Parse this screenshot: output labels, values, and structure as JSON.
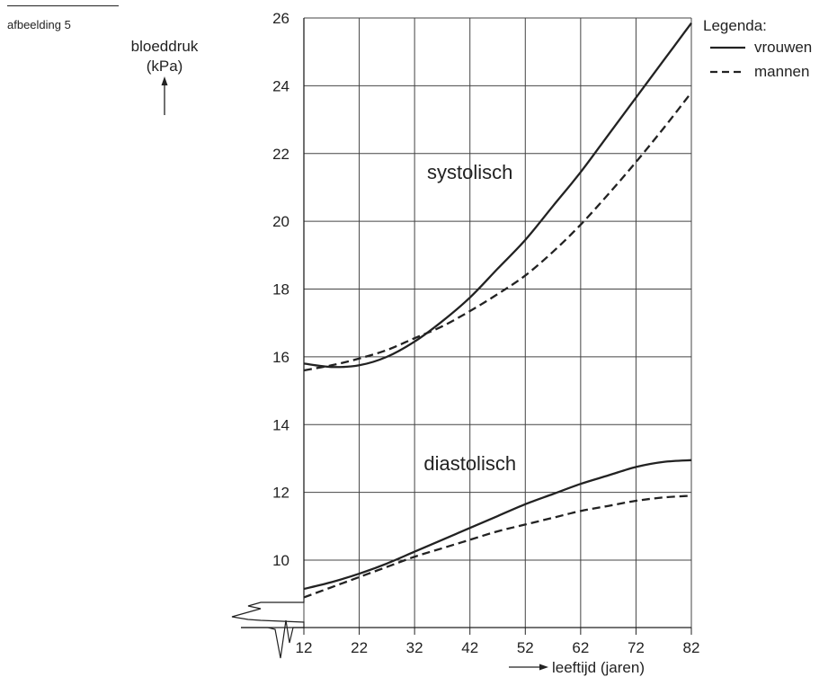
{
  "figure_label": "afbeelding 5",
  "chart_data": {
    "type": "line",
    "y_axis": {
      "label_line1": "bloeddruk",
      "label_line2": "(kPa)",
      "ylim": [
        8,
        26
      ],
      "ticks": [
        10,
        12,
        14,
        16,
        18,
        20,
        22,
        24,
        26
      ]
    },
    "x_axis": {
      "label": "leeftijd (jaren)",
      "xlim": [
        12,
        82
      ],
      "ticks": [
        12,
        22,
        32,
        42,
        52,
        62,
        72,
        82
      ]
    },
    "grid": true,
    "axis_break": true,
    "legend": {
      "title": "Legenda:",
      "placement": "top-right",
      "entries": [
        {
          "label": "vrouwen",
          "style": "solid"
        },
        {
          "label": "mannen",
          "style": "dashed"
        }
      ]
    },
    "annotations": [
      {
        "text": "systolisch",
        "x": 42,
        "y": 21.25
      },
      {
        "text": "diastolisch",
        "x": 42,
        "y": 12.65
      }
    ],
    "series": [
      {
        "group": "systolisch",
        "name": "vrouwen",
        "style": "solid",
        "x": [
          12,
          17,
          22,
          27,
          32,
          37,
          42,
          47,
          52,
          57,
          62,
          67,
          72,
          77,
          82
        ],
        "y": [
          15.8,
          15.7,
          15.75,
          16.0,
          16.45,
          17.05,
          17.75,
          18.6,
          19.45,
          20.45,
          21.45,
          22.55,
          23.65,
          24.75,
          25.85
        ]
      },
      {
        "group": "systolisch",
        "name": "mannen",
        "style": "dashed",
        "x": [
          12,
          17,
          22,
          27,
          32,
          37,
          42,
          47,
          52,
          57,
          62,
          67,
          72,
          77,
          82
        ],
        "y": [
          15.6,
          15.75,
          15.95,
          16.2,
          16.55,
          16.9,
          17.35,
          17.85,
          18.4,
          19.1,
          19.9,
          20.8,
          21.75,
          22.75,
          23.8
        ]
      },
      {
        "group": "diastolisch",
        "name": "vrouwen",
        "style": "solid",
        "x": [
          12,
          17,
          22,
          27,
          32,
          37,
          42,
          47,
          52,
          57,
          62,
          67,
          72,
          77,
          82
        ],
        "y": [
          9.15,
          9.35,
          9.6,
          9.9,
          10.25,
          10.6,
          10.95,
          11.3,
          11.65,
          11.95,
          12.25,
          12.5,
          12.75,
          12.9,
          12.95
        ]
      },
      {
        "group": "diastolisch",
        "name": "mannen",
        "style": "dashed",
        "x": [
          12,
          17,
          22,
          27,
          32,
          37,
          42,
          47,
          52,
          57,
          62,
          67,
          72,
          77,
          82
        ],
        "y": [
          8.9,
          9.2,
          9.5,
          9.8,
          10.1,
          10.35,
          10.6,
          10.85,
          11.05,
          11.25,
          11.45,
          11.6,
          11.75,
          11.85,
          11.9
        ]
      }
    ]
  }
}
